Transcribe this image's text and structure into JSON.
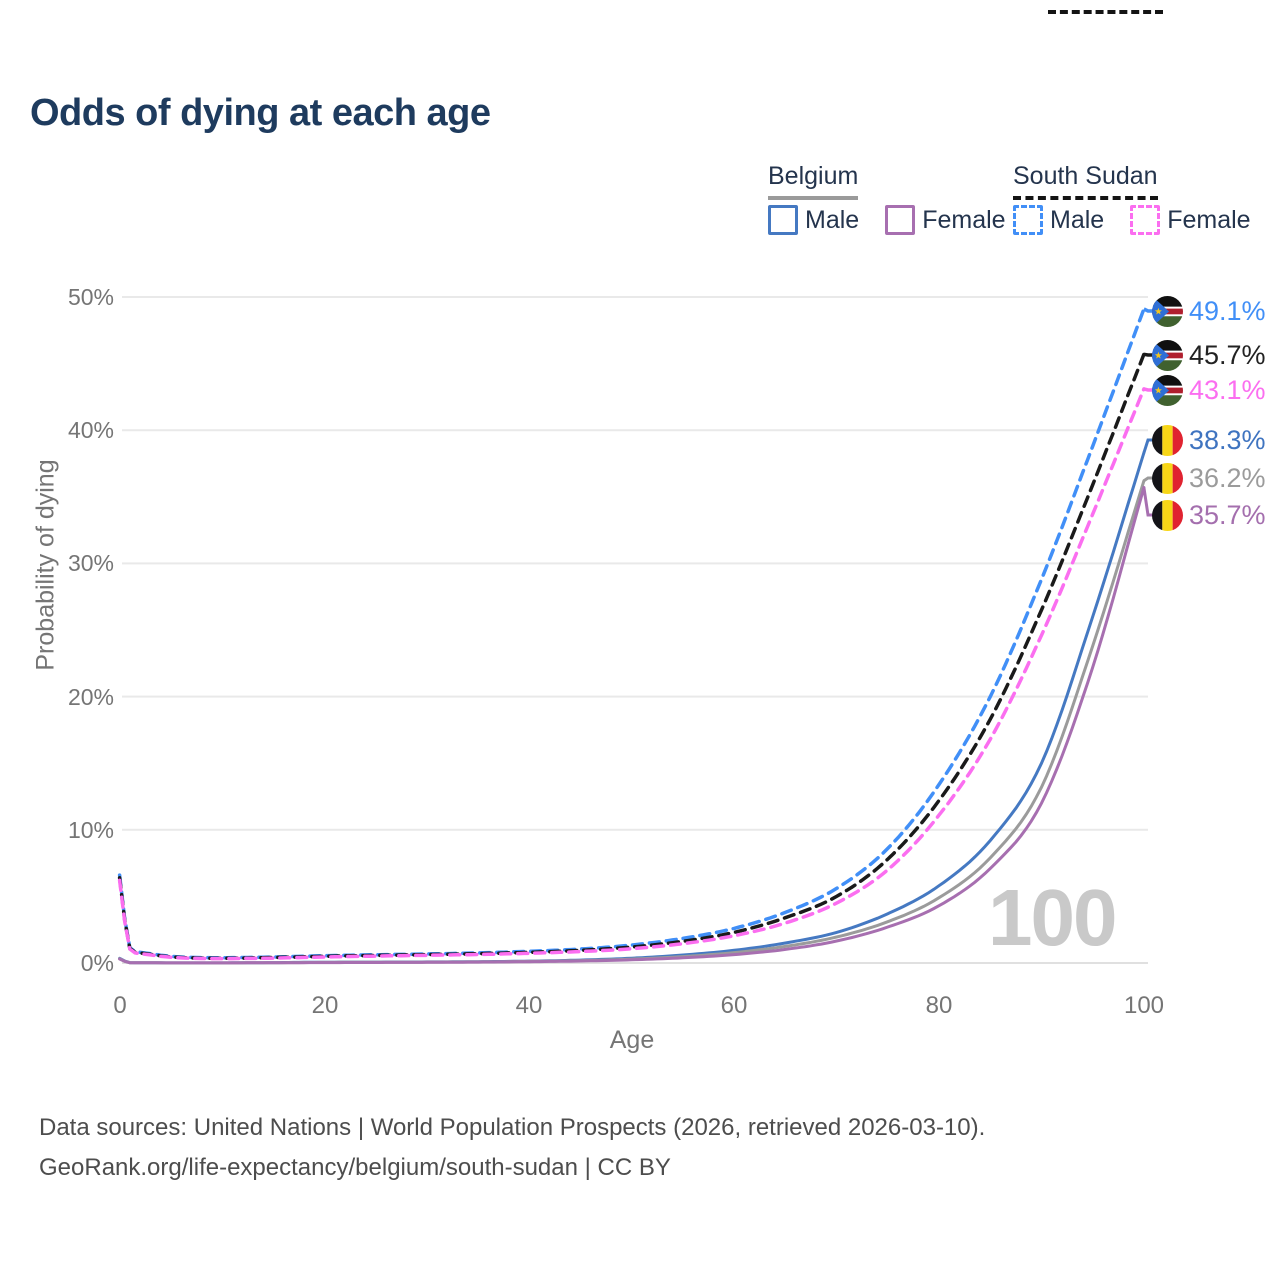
{
  "title": "Odds of dying at each age",
  "colors": {
    "title": "#1e3b5e",
    "belgium_male": "#4579c2",
    "belgium_total": "#9b9b9b",
    "belgium_female": "#a76fb0",
    "belgium_underline": "#9a9a9a",
    "south_sudan_male": "#418ff7",
    "south_sudan_total": "#1a1a1a",
    "south_sudan_female": "#fb6ef0",
    "grid": "#e9e9e9",
    "axis_text": "#757575",
    "watermark": "#c9c9c9"
  },
  "legend": {
    "groups": [
      {
        "label": "Belgium",
        "style": "solid",
        "items": [
          {
            "label": "Male"
          },
          {
            "label": "Female"
          }
        ]
      },
      {
        "label": "South Sudan",
        "style": "dashed",
        "items": [
          {
            "label": "Male"
          },
          {
            "label": "Female"
          }
        ]
      }
    ]
  },
  "axis": {
    "x_label": "Age",
    "y_label": "Probability of dying"
  },
  "watermark": "100",
  "chart_data": {
    "type": "line",
    "title": "Odds of dying at each age",
    "xlabel": "Age",
    "ylabel": "Probability of dying",
    "xlim": [
      0,
      100
    ],
    "ylim": [
      0,
      50
    ],
    "grid": "horizontal",
    "legend_position": "top-right",
    "x_ticks": [
      "0",
      "20",
      "40",
      "60",
      "80",
      "100"
    ],
    "y_ticks": [
      "0%",
      "10%",
      "20%",
      "30%",
      "40%",
      "50%"
    ],
    "x": [
      0,
      1,
      2,
      5,
      10,
      15,
      20,
      25,
      30,
      35,
      40,
      45,
      50,
      55,
      60,
      65,
      70,
      75,
      80,
      85,
      90,
      95,
      100
    ],
    "series": [
      {
        "name": "South Sudan Male",
        "style": "dashed",
        "color": "#418ff7",
        "end_label": "49.1%",
        "values": [
          6.6,
          1.15,
          0.8,
          0.5,
          0.4,
          0.45,
          0.55,
          0.62,
          0.68,
          0.76,
          0.88,
          1.05,
          1.35,
          1.85,
          2.6,
          3.8,
          5.6,
          8.6,
          13.4,
          20.0,
          28.8,
          38.8,
          49.1
        ]
      },
      {
        "name": "South Sudan Total",
        "style": "dashed",
        "color": "#1a1a1a",
        "end_label": "45.7%",
        "values": [
          6.4,
          1.1,
          0.75,
          0.46,
          0.36,
          0.41,
          0.5,
          0.57,
          0.63,
          0.7,
          0.8,
          0.95,
          1.2,
          1.63,
          2.3,
          3.4,
          5.0,
          7.8,
          12.2,
          18.3,
          26.5,
          35.9,
          45.7
        ]
      },
      {
        "name": "South Sudan Female",
        "style": "dashed",
        "color": "#fb6ef0",
        "end_label": "43.1%",
        "values": [
          6.2,
          1.05,
          0.7,
          0.43,
          0.33,
          0.37,
          0.45,
          0.52,
          0.58,
          0.64,
          0.73,
          0.86,
          1.07,
          1.45,
          2.05,
          3.0,
          4.5,
          7.0,
          11.1,
          16.8,
          24.6,
          33.7,
          43.1
        ]
      },
      {
        "name": "Belgium Male",
        "style": "solid",
        "color": "#4579c2",
        "end_label": "38.3%",
        "values": [
          0.35,
          0.03,
          0.02,
          0.01,
          0.01,
          0.03,
          0.06,
          0.07,
          0.08,
          0.1,
          0.14,
          0.22,
          0.36,
          0.6,
          0.95,
          1.5,
          2.3,
          3.7,
          5.8,
          9.2,
          15.0,
          26.0,
          38.3
        ]
      },
      {
        "name": "Belgium Total",
        "style": "solid",
        "color": "#9b9b9b",
        "end_label": "36.2%",
        "values": [
          0.32,
          0.025,
          0.018,
          0.01,
          0.01,
          0.02,
          0.045,
          0.055,
          0.065,
          0.085,
          0.12,
          0.18,
          0.29,
          0.48,
          0.78,
          1.25,
          1.95,
          3.1,
          4.9,
          7.9,
          13.2,
          23.8,
          36.2
        ]
      },
      {
        "name": "Belgium Female",
        "style": "solid",
        "color": "#a76fb0",
        "end_label": "35.7%",
        "values": [
          0.3,
          0.02,
          0.015,
          0.008,
          0.008,
          0.018,
          0.03,
          0.04,
          0.05,
          0.07,
          0.1,
          0.15,
          0.24,
          0.39,
          0.63,
          1.02,
          1.65,
          2.7,
          4.3,
          7.1,
          12.0,
          22.2,
          35.7
        ]
      }
    ]
  },
  "end_labels": [
    {
      "value": "49.1%",
      "flag": "south-sudan",
      "color": "#418ff7"
    },
    {
      "value": "45.7%",
      "flag": "south-sudan",
      "color": "#222222"
    },
    {
      "value": "43.1%",
      "flag": "south-sudan",
      "color": "#fb6ef0"
    },
    {
      "value": "38.3%",
      "flag": "belgium",
      "color": "#3f74c0"
    },
    {
      "value": "36.2%",
      "flag": "belgium",
      "color": "#9b9b9b"
    },
    {
      "value": "35.7%",
      "flag": "belgium",
      "color": "#a46fae"
    }
  ],
  "footer": {
    "line1": "Data sources: United Nations | World Population Prospects (2026, retrieved 2026-03-10).",
    "line2": "GeoRank.org/life-expectancy/belgium/south-sudan | CC BY"
  }
}
